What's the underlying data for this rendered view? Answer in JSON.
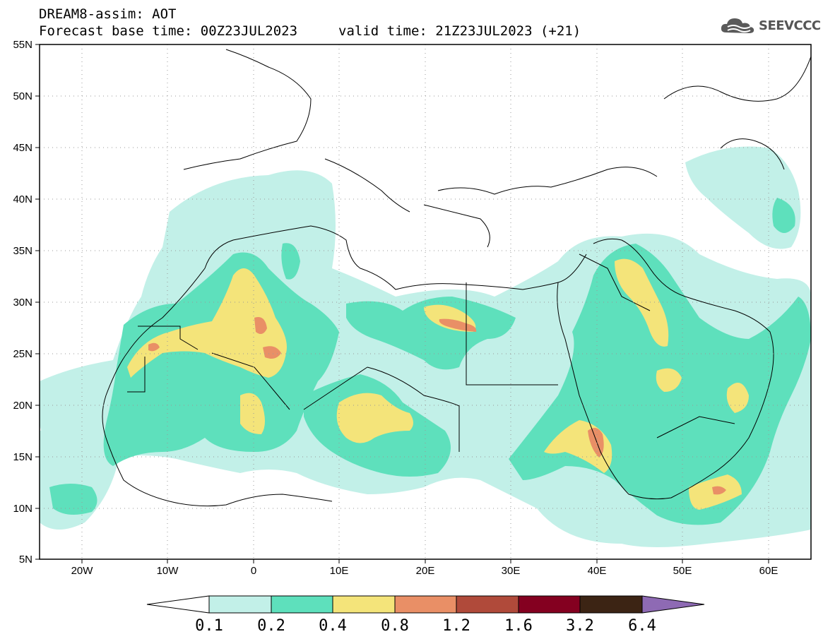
{
  "header": {
    "title": "DREAM8-assim: AOT",
    "forecast_base": "Forecast base time: 00Z23JUL2023",
    "valid_time": "valid time: 21Z23JUL2023 (+21)"
  },
  "logo": {
    "text": "SEEVCCC",
    "icon": "cloud-icon"
  },
  "map": {
    "lat_labels": [
      "55N",
      "50N",
      "45N",
      "40N",
      "35N",
      "30N",
      "25N",
      "20N",
      "15N",
      "10N",
      "5N"
    ],
    "lon_labels": [
      "20W",
      "10W",
      "0",
      "10E",
      "20E",
      "30E",
      "40E",
      "50E",
      "60E"
    ],
    "colors": {
      "c01": "#c2f0e8",
      "c02": "#5ee0bc",
      "c04": "#f4e47a",
      "c08": "#e98f66",
      "c12": "#b04a3a",
      "c16": "#840020",
      "c32": "#3c2414",
      "c64": "#8e6ab4"
    }
  },
  "colorbar": {
    "labels": [
      "0.1",
      "0.2",
      "0.4",
      "0.8",
      "1.2",
      "1.6",
      "3.2",
      "6.4"
    ],
    "colors": [
      "#ffffff",
      "#c2f0e8",
      "#5ee0bc",
      "#f4e47a",
      "#e98f66",
      "#b04a3a",
      "#840020",
      "#3c2414",
      "#8e6ab4"
    ]
  }
}
